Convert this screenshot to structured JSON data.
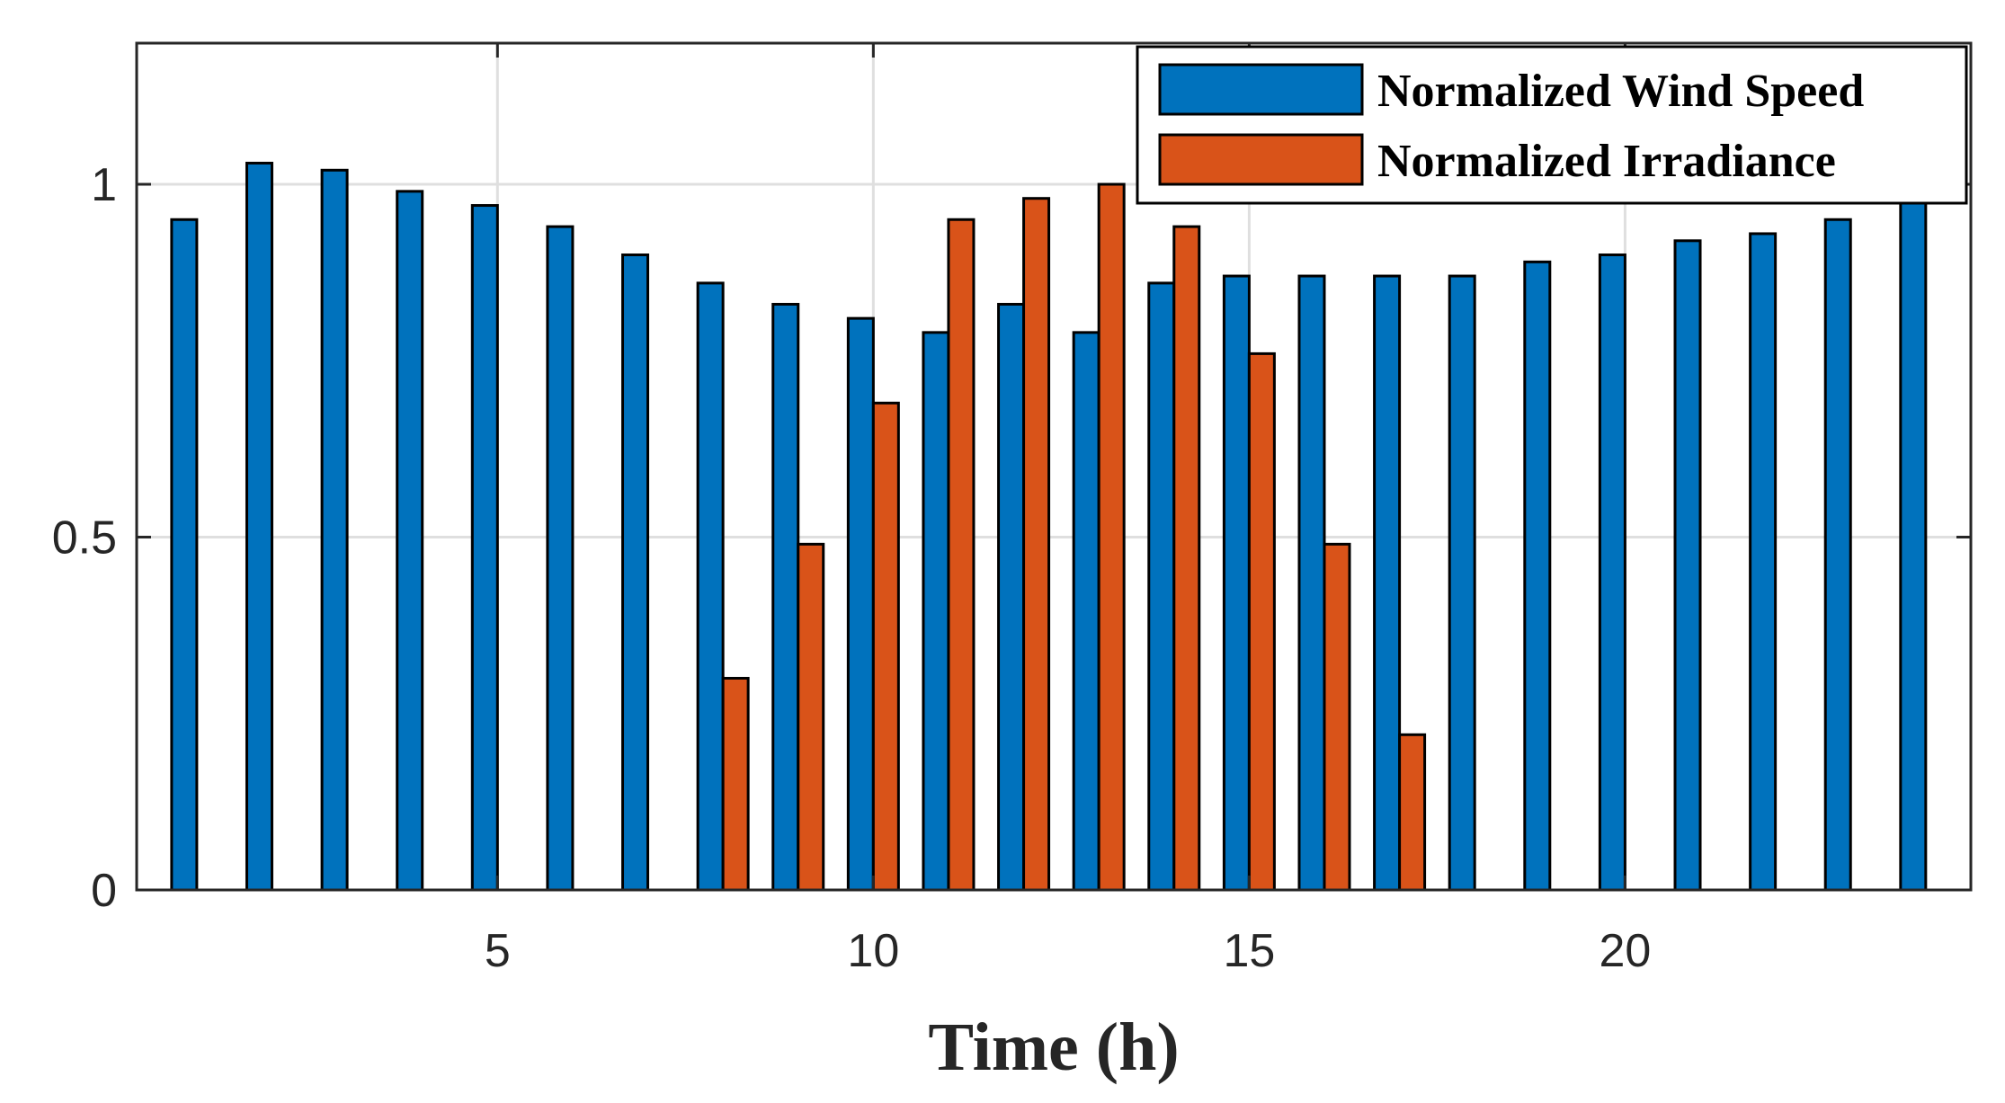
{
  "chart_data": {
    "type": "bar",
    "title": "",
    "xlabel": "Time (h)",
    "ylabel": "",
    "xlim": [
      0.2,
      24.6
    ],
    "ylim": [
      0,
      1.2
    ],
    "grid": true,
    "legend_position": "top-right",
    "x": [
      1,
      2,
      3,
      4,
      5,
      6,
      7,
      8,
      9,
      10,
      11,
      12,
      13,
      14,
      15,
      16,
      17,
      18,
      19,
      20,
      21,
      22,
      23,
      24
    ],
    "x_ticks": [
      5,
      10,
      15,
      20
    ],
    "x_tick_labels": [
      "5",
      "10",
      "15",
      "20"
    ],
    "y_ticks": [
      0,
      0.5,
      1
    ],
    "y_tick_labels": [
      "0",
      "0.5",
      "1"
    ],
    "series": [
      {
        "name": "Normalized Wind Speed",
        "color": "#0072bd",
        "values": [
          0.95,
          1.03,
          1.02,
          0.99,
          0.97,
          0.94,
          0.9,
          0.86,
          0.83,
          0.81,
          0.79,
          0.83,
          0.79,
          0.86,
          0.87,
          0.87,
          0.87,
          0.87,
          0.89,
          0.9,
          0.92,
          0.93,
          0.95,
          0.98
        ]
      },
      {
        "name": "Normalized Irradiance",
        "color": "#d95319",
        "values": [
          0,
          0,
          0,
          0,
          0,
          0,
          0,
          0.3,
          0.49,
          0.69,
          0.95,
          0.98,
          1.0,
          0.94,
          0.76,
          0.49,
          0.22,
          0,
          0,
          0,
          0,
          0,
          0,
          0
        ]
      }
    ]
  }
}
